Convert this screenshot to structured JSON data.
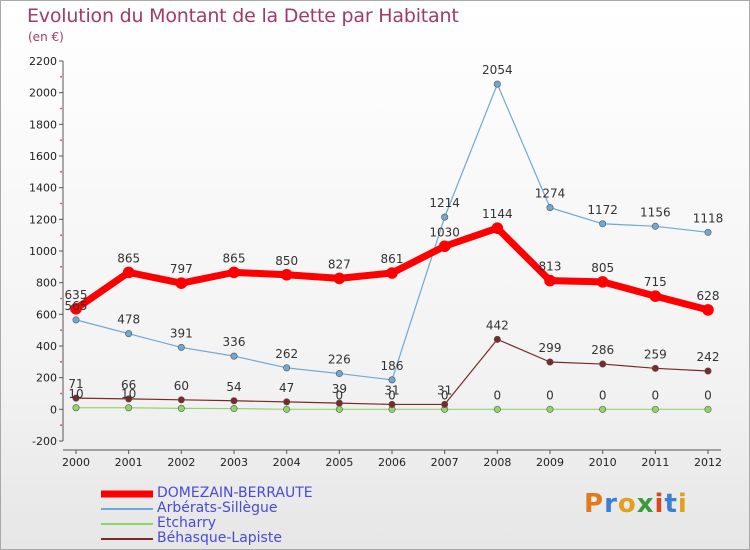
{
  "title": "Evolution du Montant de la Dette par Habitant",
  "subtitle": "(en €)",
  "logo": {
    "text": "Proxiti",
    "colors": [
      "#e07a1e",
      "#3b7fd0",
      "#e0a21e",
      "#3b9a3b",
      "#d84a1e",
      "#3b7fd0",
      "#e0a21e"
    ]
  },
  "chart_data": {
    "type": "line",
    "x": [
      "2000",
      "2001",
      "2002",
      "2003",
      "2004",
      "2005",
      "2006",
      "2007",
      "2008",
      "2009",
      "2010",
      "2011",
      "2012"
    ],
    "ylim": [
      -200,
      2200
    ],
    "yticks": [
      "-200",
      "0",
      "200",
      "400",
      "600",
      "800",
      "1000",
      "1200",
      "1400",
      "1600",
      "1800",
      "2000",
      "2200"
    ],
    "grid": false,
    "legend_position": "bottom-left",
    "series": [
      {
        "name": "DOMEZAIN-BERRAUTE",
        "color": "#ff0000",
        "width": 7,
        "values": [
          635,
          865,
          797,
          865,
          850,
          827,
          861,
          1030,
          1144,
          813,
          805,
          715,
          628
        ],
        "labels": [
          "635",
          "865",
          "797",
          "865",
          "850",
          "827",
          "861",
          "1030",
          "1144",
          "813",
          "805",
          "715",
          "628"
        ]
      },
      {
        "name": "Arbérats-Sillègue",
        "color": "#6fa8d6",
        "width": 1.2,
        "values": [
          565,
          478,
          391,
          336,
          262,
          226,
          186,
          1214,
          2054,
          1274,
          1172,
          1156,
          1118
        ],
        "labels": [
          "565",
          "478",
          "391",
          "336",
          "262",
          "226",
          "186",
          "1214",
          "2054",
          "1274",
          "1172",
          "1156",
          "1118"
        ]
      },
      {
        "name": "Etcharry",
        "color": "#8fd66a",
        "width": 1.2,
        "values": [
          10,
          10,
          6,
          5,
          0,
          0,
          0,
          0,
          0,
          0,
          0,
          0,
          0
        ],
        "labels": [
          "10",
          "10",
          "",
          "",
          "",
          "0",
          "0",
          "0",
          "0",
          "0",
          "0",
          "0",
          "0"
        ]
      },
      {
        "name": "Béhasque-Lapiste",
        "color": "#7a2a2a",
        "width": 1.2,
        "values": [
          71,
          66,
          60,
          54,
          47,
          39,
          31,
          31,
          442,
          299,
          286,
          259,
          242
        ],
        "labels": [
          "71",
          "66",
          "60",
          "54",
          "47",
          "39",
          "31",
          "31",
          "442",
          "299",
          "286",
          "259",
          "242"
        ]
      }
    ]
  }
}
